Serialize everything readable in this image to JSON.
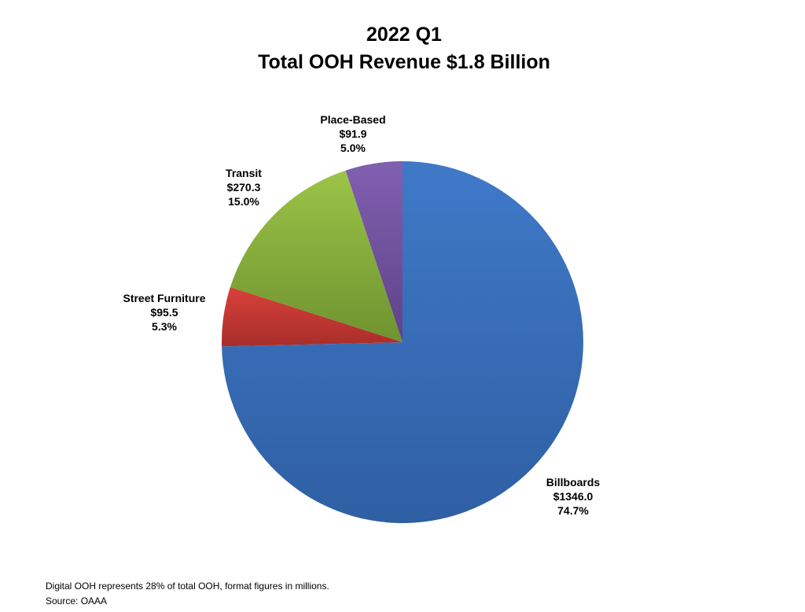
{
  "chart_data": {
    "type": "pie",
    "title_line1": "2022 Q1",
    "title_line2": "Total OOH Revenue $1.8 Billion",
    "slices": [
      {
        "label": "Billboards",
        "value": 1346.0,
        "value_text": "$1346.0",
        "percent": 74.7,
        "percent_text": "74.7%",
        "color": "#3f79c8",
        "color_dark": "#2f5fa3"
      },
      {
        "label": "Street Furniture",
        "value": 95.5,
        "value_text": "$95.5",
        "percent": 5.3,
        "percent_text": "5.3%",
        "color": "#d9403a",
        "color_dark": "#a82e2a"
      },
      {
        "label": "Transit",
        "value": 270.3,
        "value_text": "$270.3",
        "percent": 15.0,
        "percent_text": "15.0%",
        "color": "#9bc447",
        "color_dark": "#6f9330"
      },
      {
        "label": "Place-Based",
        "value": 91.9,
        "value_text": "$91.9",
        "percent": 5.0,
        "percent_text": "5.0%",
        "color": "#8060b0",
        "color_dark": "#5f4288"
      }
    ],
    "notes": [
      "Digital OOH represents 28% of total OOH, format figures in millions.",
      "Source: OAAA"
    ]
  }
}
